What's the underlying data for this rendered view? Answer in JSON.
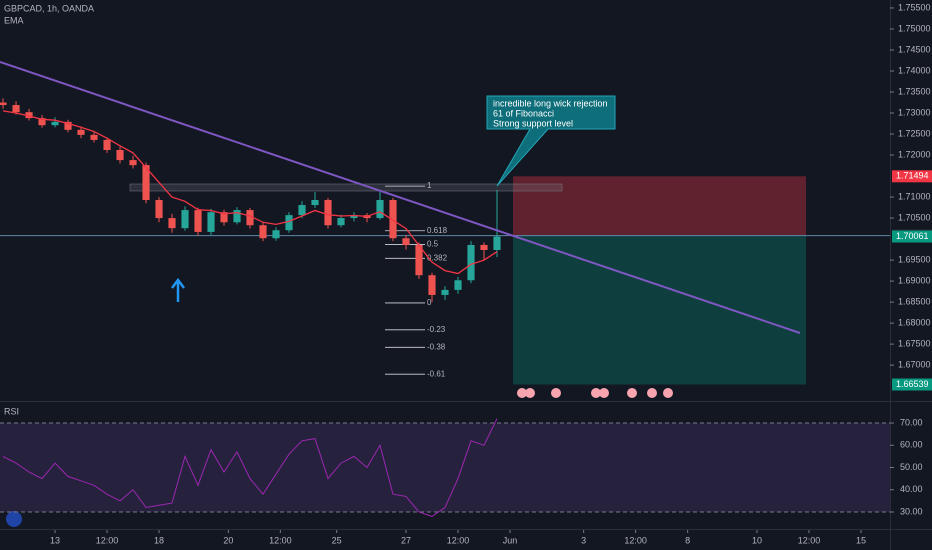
{
  "chart_data": {
    "type": "candlestick",
    "symbol": "GBPCAD, 1h, OANDA",
    "indicator": "EMA",
    "xlim": [
      -12.7,
      192.7
    ],
    "xticks": [
      {
        "value": 0,
        "label": "13"
      },
      {
        "value": 12,
        "label": "12:00"
      },
      {
        "value": 24,
        "label": "18"
      },
      {
        "value": 40,
        "label": "20"
      },
      {
        "value": 52,
        "label": "12:00"
      },
      {
        "value": 65,
        "label": "25"
      },
      {
        "value": 81,
        "label": "27"
      },
      {
        "value": 93,
        "label": "12:00"
      },
      {
        "value": 105,
        "label": "Jun"
      },
      {
        "value": 122,
        "label": "3"
      },
      {
        "value": 134,
        "label": "12:00"
      },
      {
        "value": 146,
        "label": "8"
      },
      {
        "value": 162,
        "label": "10"
      },
      {
        "value": 174,
        "label": "12:00"
      },
      {
        "value": 186,
        "label": "15"
      }
    ],
    "ylim": [
      1.6617,
      1.7569
    ],
    "yticks": [
      {
        "value": 1.755,
        "label": "1.75500"
      },
      {
        "value": 1.75,
        "label": "1.75000"
      },
      {
        "value": 1.745,
        "label": "1.74500"
      },
      {
        "value": 1.74,
        "label": "1.74000"
      },
      {
        "value": 1.735,
        "label": "1.73500"
      },
      {
        "value": 1.73,
        "label": "1.73000"
      },
      {
        "value": 1.725,
        "label": "1.72500"
      },
      {
        "value": 1.72,
        "label": "1.72000"
      },
      {
        "value": 1.71,
        "label": "1.71000"
      },
      {
        "value": 1.705,
        "label": "1.70500"
      },
      {
        "value": 1.695,
        "label": "1.69500"
      },
      {
        "value": 1.69,
        "label": "1.69000"
      },
      {
        "value": 1.685,
        "label": "1.68500"
      },
      {
        "value": 1.68,
        "label": "1.68000"
      },
      {
        "value": 1.675,
        "label": "1.67500"
      },
      {
        "value": 1.67,
        "label": "1.67000"
      }
    ],
    "x": [
      -12,
      -9,
      -6,
      -3,
      0,
      3,
      6,
      9,
      12,
      15,
      18,
      21,
      24,
      27,
      30,
      33,
      36,
      39,
      42,
      45,
      48,
      51,
      54,
      57,
      60,
      63,
      66,
      69,
      72,
      75,
      78,
      81,
      84,
      87,
      90,
      93,
      96,
      99,
      102
    ],
    "candles": [
      [
        1.7325,
        1.7335,
        1.731,
        1.7319
      ],
      [
        1.7319,
        1.7328,
        1.7296,
        1.7302
      ],
      [
        1.7302,
        1.731,
        1.7282,
        1.7288
      ],
      [
        1.7288,
        1.7295,
        1.7265,
        1.7271
      ],
      [
        1.7271,
        1.729,
        1.7266,
        1.7279
      ],
      [
        1.7279,
        1.7284,
        1.7254,
        1.726
      ],
      [
        1.726,
        1.7268,
        1.724,
        1.7248
      ],
      [
        1.7248,
        1.7256,
        1.723,
        1.7236
      ],
      [
        1.7236,
        1.7242,
        1.7205,
        1.7212
      ],
      [
        1.7212,
        1.722,
        1.718,
        1.7188
      ],
      [
        1.7188,
        1.7198,
        1.7168,
        1.7176
      ],
      [
        1.7176,
        1.7182,
        1.7085,
        1.7093
      ],
      [
        1.7093,
        1.71,
        1.704,
        1.705
      ],
      [
        1.705,
        1.706,
        1.7015,
        1.7026
      ],
      [
        1.7026,
        1.7078,
        1.702,
        1.7069
      ],
      [
        1.7069,
        1.7075,
        1.7008,
        1.7017
      ],
      [
        1.7017,
        1.7072,
        1.701,
        1.7064
      ],
      [
        1.7064,
        1.707,
        1.7032,
        1.704
      ],
      [
        1.704,
        1.7076,
        1.7035,
        1.7069
      ],
      [
        1.7069,
        1.7074,
        1.7025,
        1.7033
      ],
      [
        1.7033,
        1.704,
        1.6995,
        1.7002
      ],
      [
        1.7002,
        1.7028,
        1.6996,
        1.7021
      ],
      [
        1.7021,
        1.7064,
        1.7015,
        1.7057
      ],
      [
        1.7057,
        1.709,
        1.705,
        1.7081
      ],
      [
        1.7081,
        1.7112,
        1.7074,
        1.7093
      ],
      [
        1.7093,
        1.7098,
        1.7025,
        1.7033
      ],
      [
        1.7033,
        1.7058,
        1.7028,
        1.705
      ],
      [
        1.705,
        1.7064,
        1.7042,
        1.7057
      ],
      [
        1.7057,
        1.7062,
        1.704,
        1.705
      ],
      [
        1.705,
        1.7112,
        1.7046,
        1.7093
      ],
      [
        1.7093,
        1.7098,
        1.6995,
        1.7002
      ],
      [
        1.7002,
        1.701,
        1.6975,
        1.6986
      ],
      [
        1.6986,
        1.6992,
        1.6905,
        1.6914
      ],
      [
        1.6914,
        1.692,
        1.685,
        1.6867
      ],
      [
        1.6867,
        1.6888,
        1.6855,
        1.6879
      ],
      [
        1.6879,
        1.691,
        1.687,
        1.6902
      ],
      [
        1.6902,
        1.6995,
        1.6895,
        1.6986
      ],
      [
        1.6986,
        1.6992,
        1.695,
        1.6974
      ],
      [
        1.6974,
        1.7117,
        1.6957,
        1.7006
      ]
    ],
    "ema": {
      "color": "#f23645",
      "values": [
        1.7305,
        1.73,
        1.7293,
        1.7285,
        1.7283,
        1.7275,
        1.7266,
        1.7256,
        1.724,
        1.7222,
        1.7205,
        1.717,
        1.7135,
        1.71,
        1.709,
        1.707,
        1.7068,
        1.706,
        1.7063,
        1.7055,
        1.704,
        1.7035,
        1.7042,
        1.7055,
        1.7068,
        1.7058,
        1.7055,
        1.7056,
        1.7054,
        1.7065,
        1.7045,
        1.7025,
        1.6985,
        1.6945,
        1.6925,
        1.6918,
        1.694,
        1.695,
        1.697
      ]
    },
    "fibonacci": {
      "high": 1.7126,
      "low": 1.6848,
      "levels": [
        1,
        0.618,
        0.5,
        0.382,
        0,
        -0.23,
        -0.38,
        -0.61
      ]
    },
    "position": {
      "stop": 1.71494,
      "entry": 1.70082,
      "target": 1.66539
    },
    "last_price": 1.70061,
    "annotation": [
      "incredible long wick rejection",
      "61 of Fibonacci",
      "Strong support level"
    ],
    "rsi": {
      "title": "RSI",
      "color": "#9c27b0",
      "ylim": [
        22.8,
        79
      ],
      "yticks": [
        {
          "value": 70,
          "label": "70.00"
        },
        {
          "value": 60,
          "label": "60.00"
        },
        {
          "value": 50,
          "label": "50.00"
        },
        {
          "value": 40,
          "label": "40.00"
        },
        {
          "value": 30,
          "label": "30.00"
        }
      ],
      "bands": [
        30,
        70
      ],
      "values": [
        55,
        52,
        48,
        45,
        52,
        46,
        44,
        42,
        38,
        35,
        40,
        32,
        33,
        34,
        55,
        42,
        58,
        48,
        57,
        45,
        38,
        47,
        56,
        62,
        63,
        45,
        52,
        55,
        50,
        60,
        38,
        37,
        30,
        28,
        32,
        45,
        62,
        60,
        72
      ]
    }
  }
}
